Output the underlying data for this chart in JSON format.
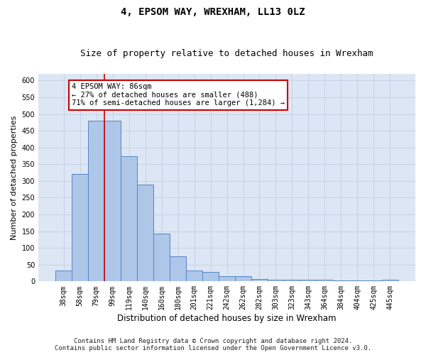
{
  "title": "4, EPSOM WAY, WREXHAM, LL13 0LZ",
  "subtitle": "Size of property relative to detached houses in Wrexham",
  "xlabel": "Distribution of detached houses by size in Wrexham",
  "ylabel": "Number of detached properties",
  "bar_labels": [
    "38sqm",
    "58sqm",
    "79sqm",
    "99sqm",
    "119sqm",
    "140sqm",
    "160sqm",
    "180sqm",
    "201sqm",
    "221sqm",
    "242sqm",
    "262sqm",
    "282sqm",
    "303sqm",
    "323sqm",
    "343sqm",
    "364sqm",
    "384sqm",
    "404sqm",
    "425sqm",
    "445sqm"
  ],
  "bar_values": [
    32,
    320,
    481,
    481,
    375,
    290,
    143,
    75,
    32,
    29,
    15,
    15,
    8,
    6,
    5,
    5,
    5,
    3,
    3,
    2,
    5
  ],
  "bar_color": "#aec6e8",
  "bar_edge_color": "#5585c5",
  "annotation_text": "4 EPSOM WAY: 86sqm\n← 27% of detached houses are smaller (488)\n71% of semi-detached houses are larger (1,284) →",
  "annotation_box_color": "#ffffff",
  "annotation_box_edge_color": "#cc0000",
  "vline_color": "#cc0000",
  "ylim": [
    0,
    620
  ],
  "yticks": [
    0,
    50,
    100,
    150,
    200,
    250,
    300,
    350,
    400,
    450,
    500,
    550,
    600
  ],
  "grid_color": "#c8d4e8",
  "background_color": "#dde6f4",
  "footer_line1": "Contains HM Land Registry data © Crown copyright and database right 2024.",
  "footer_line2": "Contains public sector information licensed under the Open Government Licence v3.0.",
  "title_fontsize": 10,
  "subtitle_fontsize": 9,
  "xlabel_fontsize": 8.5,
  "ylabel_fontsize": 8,
  "tick_fontsize": 7,
  "footer_fontsize": 6.5,
  "annot_fontsize": 7.5
}
